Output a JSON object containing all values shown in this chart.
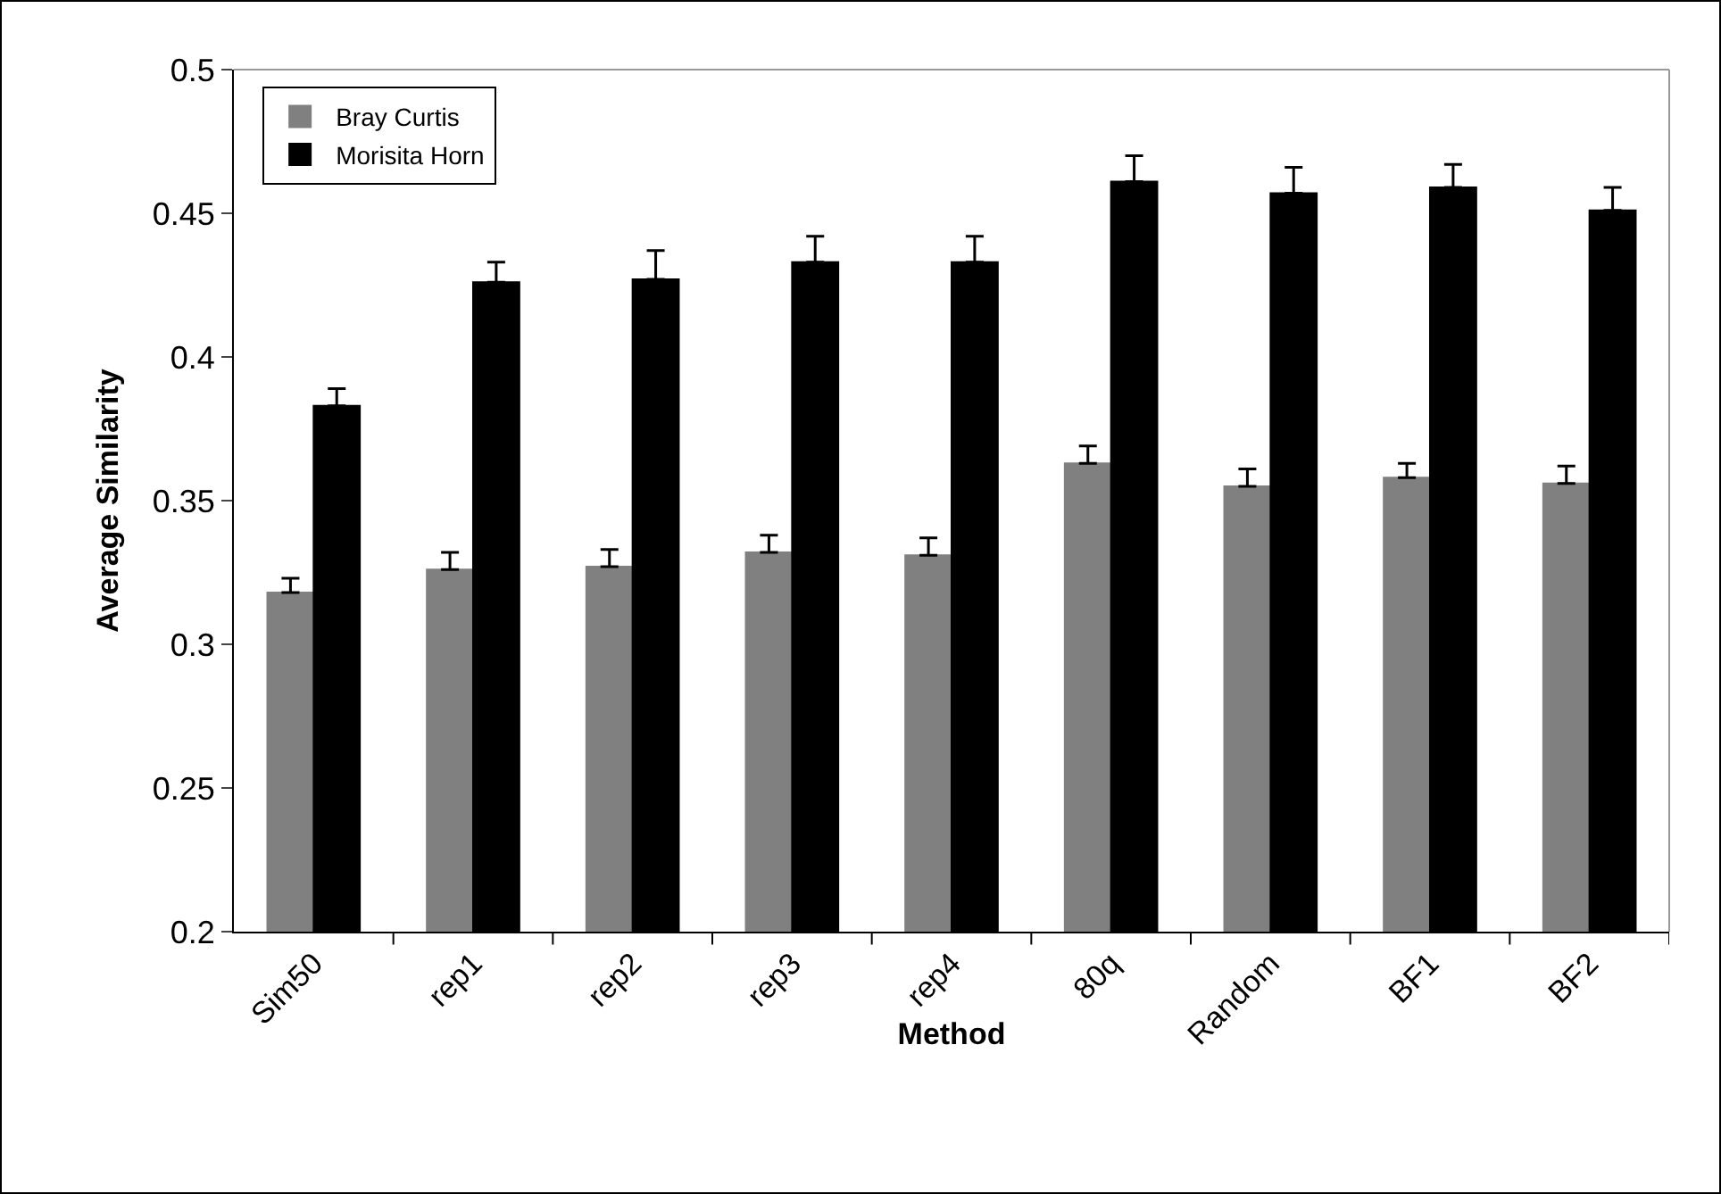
{
  "chart_data": {
    "type": "bar",
    "xlabel": "Method",
    "ylabel": "Average Similarity",
    "categories": [
      "Sim50",
      "rep1",
      "rep2",
      "rep3",
      "rep4",
      "80q",
      "Random",
      "BF1",
      "BF2"
    ],
    "series": [
      {
        "name": "Bray Curtis",
        "color": "#808080",
        "values": [
          0.318,
          0.326,
          0.327,
          0.332,
          0.331,
          0.363,
          0.355,
          0.358,
          0.356
        ],
        "errors": [
          [
            0.318,
            0.323
          ],
          [
            0.326,
            0.332
          ],
          [
            0.327,
            0.333
          ],
          [
            0.332,
            0.338
          ],
          [
            0.331,
            0.337
          ],
          [
            0.363,
            0.369
          ],
          [
            0.355,
            0.361
          ],
          [
            0.358,
            0.363
          ],
          [
            0.356,
            0.362
          ]
        ]
      },
      {
        "name": "Morisita Horn",
        "color": "#000000",
        "values": [
          0.383,
          0.426,
          0.427,
          0.433,
          0.433,
          0.461,
          0.457,
          0.459,
          0.451
        ],
        "errors": [
          [
            0.383,
            0.389
          ],
          [
            0.426,
            0.433
          ],
          [
            0.427,
            0.437
          ],
          [
            0.433,
            0.442
          ],
          [
            0.433,
            0.442
          ],
          [
            0.461,
            0.47
          ],
          [
            0.457,
            0.466
          ],
          [
            0.459,
            0.467
          ],
          [
            0.451,
            0.459
          ]
        ]
      }
    ],
    "ylim": [
      0.2,
      0.5
    ],
    "yticks": [
      0.2,
      0.25,
      0.3,
      0.35,
      0.4,
      0.45,
      0.5
    ],
    "grid": false,
    "legend": "top left"
  }
}
